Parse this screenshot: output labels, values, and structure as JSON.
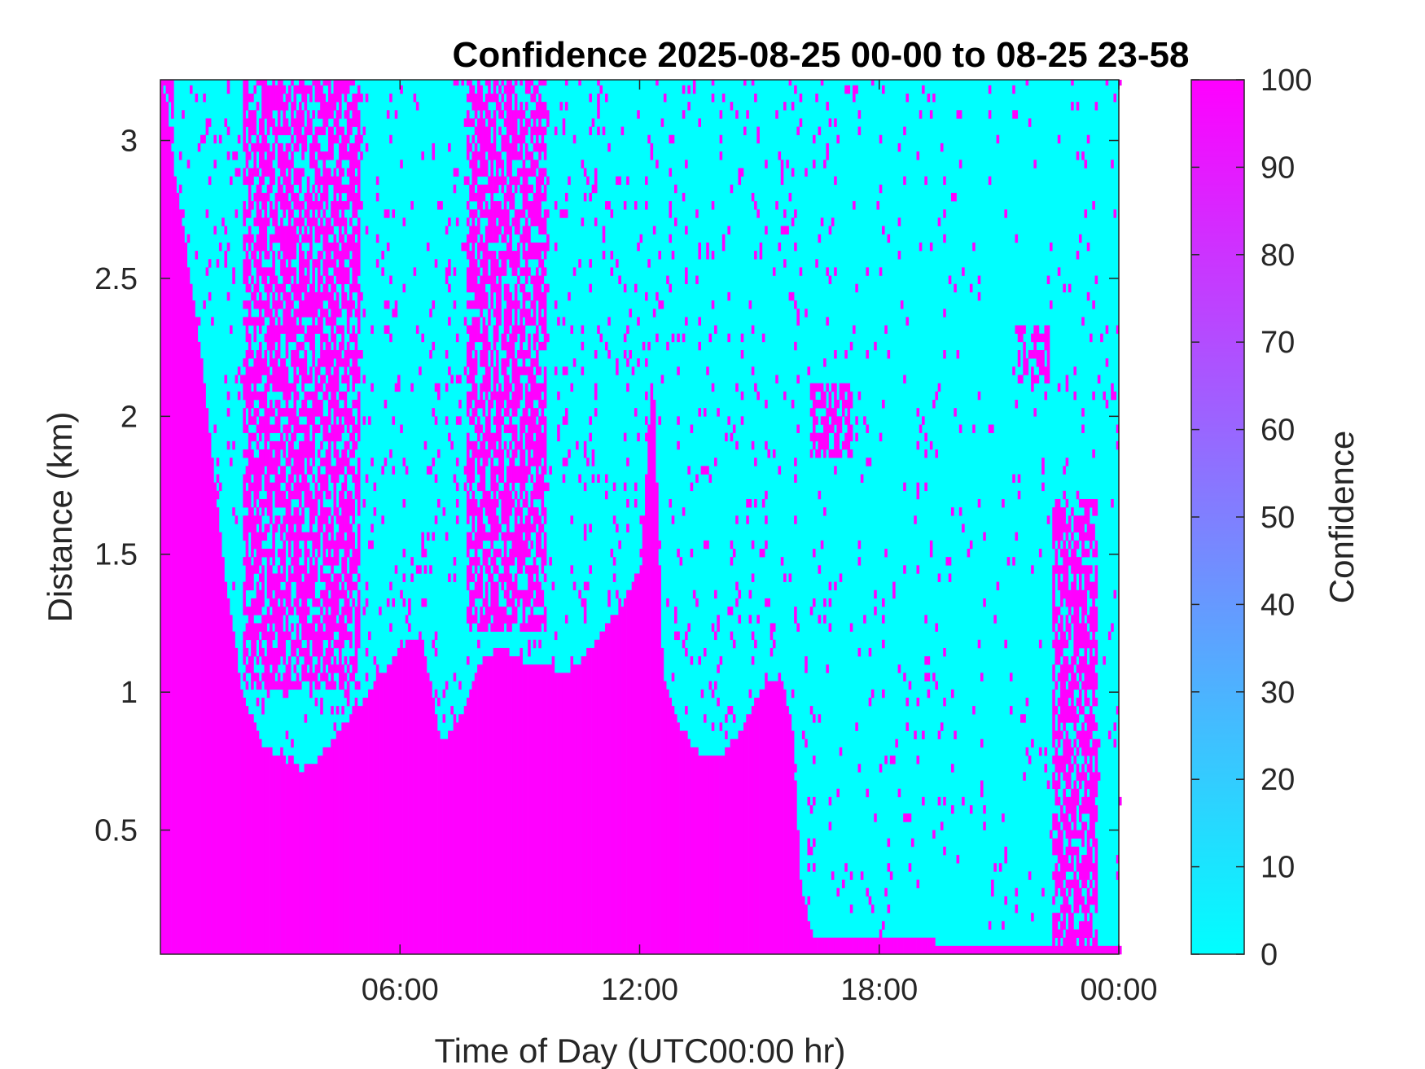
{
  "chart_data": {
    "type": "heatmap",
    "title": "Confidence 2025-08-25 00-00 to 08-25 23-58",
    "xlabel": "Time of Day (UTC00:00 hr)",
    "ylabel": "Distance (km)",
    "xlim": [
      0,
      24
    ],
    "ylim": [
      0.05,
      3.22
    ],
    "x_ticks": [
      6,
      12,
      18,
      24
    ],
    "x_tick_labels": [
      "06:00",
      "12:00",
      "18:00",
      "00:00"
    ],
    "y_ticks": [
      0.5,
      1,
      1.5,
      2,
      2.5,
      3
    ],
    "y_tick_labels": [
      "0.5",
      "1",
      "1.5",
      "2",
      "2.5",
      "3"
    ],
    "grid": false,
    "colorbar": {
      "label": "Confidence",
      "limits": [
        0,
        100
      ],
      "ticks": [
        0,
        10,
        20,
        30,
        40,
        50,
        60,
        70,
        80,
        90,
        100
      ],
      "tick_labels": [
        "0",
        "10",
        "20",
        "30",
        "40",
        "50",
        "60",
        "70",
        "80",
        "90",
        "100"
      ],
      "colormap": "cool-reversed",
      "low_color": "#00FFFF",
      "high_color": "#FF00FF"
    },
    "high_confidence_top_km": [
      {
        "time": 0.0,
        "top": 3.2
      },
      {
        "time": 0.5,
        "top": 2.7
      },
      {
        "time": 1.0,
        "top": 2.2
      },
      {
        "time": 1.6,
        "top": 1.4
      },
      {
        "time": 2.0,
        "top": 1.0
      },
      {
        "time": 2.5,
        "top": 0.8
      },
      {
        "time": 3.0,
        "top": 0.75
      },
      {
        "time": 3.5,
        "top": 0.7
      },
      {
        "time": 4.0,
        "top": 0.75
      },
      {
        "time": 4.5,
        "top": 0.85
      },
      {
        "time": 5.0,
        "top": 0.95
      },
      {
        "time": 5.5,
        "top": 1.05
      },
      {
        "time": 6.0,
        "top": 1.15
      },
      {
        "time": 6.5,
        "top": 1.2
      },
      {
        "time": 7.0,
        "top": 0.8
      },
      {
        "time": 7.5,
        "top": 0.9
      },
      {
        "time": 8.0,
        "top": 1.1
      },
      {
        "time": 8.5,
        "top": 1.15
      },
      {
        "time": 9.0,
        "top": 1.1
      },
      {
        "time": 9.5,
        "top": 1.1
      },
      {
        "time": 10.0,
        "top": 1.05
      },
      {
        "time": 10.5,
        "top": 1.1
      },
      {
        "time": 11.0,
        "top": 1.2
      },
      {
        "time": 11.5,
        "top": 1.3
      },
      {
        "time": 12.0,
        "top": 1.45
      },
      {
        "time": 12.3,
        "top": 2.2
      },
      {
        "time": 12.55,
        "top": 1.05
      },
      {
        "time": 13.0,
        "top": 0.85
      },
      {
        "time": 13.5,
        "top": 0.75
      },
      {
        "time": 14.0,
        "top": 0.75
      },
      {
        "time": 14.5,
        "top": 0.85
      },
      {
        "time": 15.0,
        "top": 1.0
      },
      {
        "time": 15.5,
        "top": 1.05
      },
      {
        "time": 15.8,
        "top": 0.85
      },
      {
        "time": 16.0,
        "top": 0.3
      },
      {
        "time": 16.3,
        "top": 0.1
      },
      {
        "time": 24.0,
        "top": 0.05
      }
    ],
    "high_confidence_regions": [
      {
        "time_start": 0.0,
        "time_end": 0.3,
        "distance_start": 0.05,
        "distance_end": 3.22
      },
      {
        "time_start": 7.6,
        "time_end": 9.6,
        "distance_start": 1.2,
        "distance_end": 3.22
      },
      {
        "time_start": 2.0,
        "time_end": 5.0,
        "distance_start": 1.0,
        "distance_end": 3.22
      },
      {
        "time_start": 16.2,
        "time_end": 17.3,
        "distance_start": 1.85,
        "distance_end": 2.1
      },
      {
        "time_start": 21.4,
        "time_end": 22.2,
        "distance_start": 2.1,
        "distance_end": 2.3
      },
      {
        "time_start": 22.3,
        "time_end": 23.4,
        "distance_start": 0.05,
        "distance_end": 1.7
      }
    ],
    "cell_resolution_minutes": 4,
    "cell_resolution_km": 0.03
  }
}
